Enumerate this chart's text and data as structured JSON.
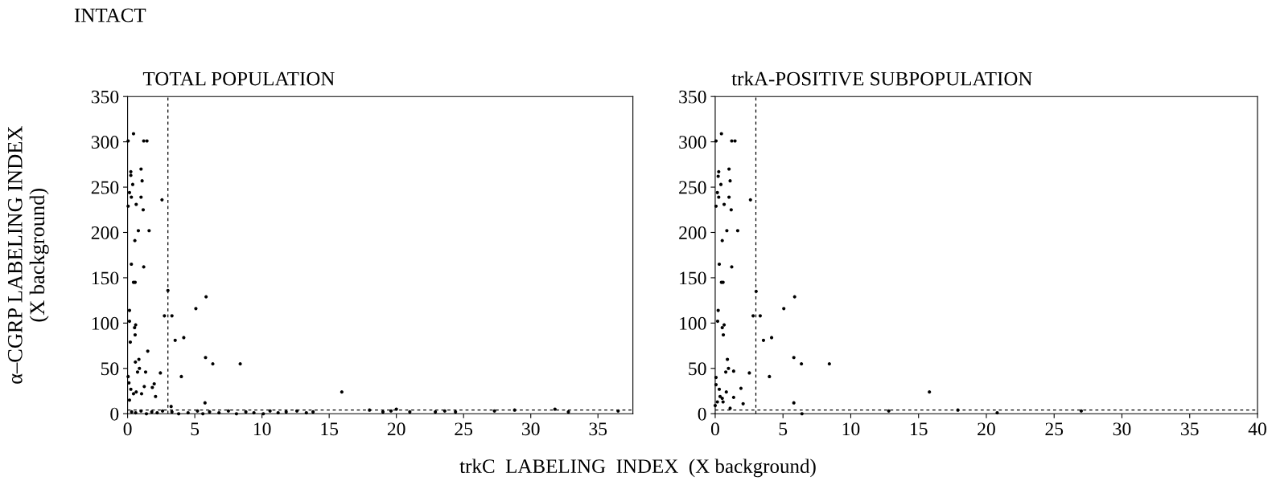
{
  "chart_data": [
    {
      "type": "scatter",
      "title": "TOTAL POPULATION",
      "xlabel": "trkC  LABELING  INDEX  (X background)",
      "ylabel": "α–CGRP LABELING INDEX\n(X background)",
      "annotations": [
        "INTACT"
      ],
      "xlim": [
        0,
        37.6
      ],
      "xticks": [
        0,
        5,
        10,
        15,
        20,
        25,
        30,
        35
      ],
      "ylim": [
        0,
        350
      ],
      "yticks": [
        0,
        50,
        100,
        150,
        200,
        250,
        300,
        350
      ],
      "grid": false,
      "marker": "circle",
      "ref_lines": [
        {
          "axis": "x",
          "value": 3,
          "line_style": "dashed",
          "color": "#000000"
        },
        {
          "axis": "y",
          "value": 4,
          "line_style": "dashed",
          "color": "#000000"
        }
      ],
      "series": [
        {
          "color": "#000000",
          "x": [
            0.44,
            0.04,
            1.2,
            1.44,
            0.24,
            0.24,
            1.0,
            1.08,
            0.38,
            0.14,
            0.28,
            1.0,
            0.04,
            0.64,
            1.16,
            2.56,
            0.8,
            1.6,
            0.54,
            1.2,
            0.28,
            0.44,
            0.56,
            0.14,
            0.14,
            0.6,
            0.52,
            0.56,
            0.2,
            1.5,
            0.58,
            0.84,
            0.88,
            0.74,
            1.34,
            2.44,
            0.04,
            0.1,
            1.24,
            1.84,
            1.98,
            0.24,
            0.44,
            0.64,
            2.08,
            1.04,
            0.14,
            3.0,
            2.74,
            3.3,
            3.54,
            4.18,
            5.08,
            5.84,
            5.8,
            6.34,
            4.0,
            8.38,
            5.76,
            3.24,
            15.94,
            0.3,
            0.6,
            1.0,
            1.4,
            1.8,
            2.2,
            2.6,
            3.3,
            3.8,
            4.5,
            5.2,
            5.6,
            6.1,
            6.8,
            7.5,
            8.1,
            8.8,
            9.4,
            10.1,
            10.6,
            11.2,
            11.8,
            12.6,
            13.3,
            13.8,
            18.0,
            19.0,
            19.6,
            20.0,
            21.0,
            22.9,
            23.6,
            24.4,
            27.3,
            28.8,
            31.8,
            32.8,
            36.5
          ],
          "values": [
            309,
            301,
            301,
            301,
            267,
            263,
            270,
            257,
            253,
            244,
            239,
            239,
            229,
            231,
            225,
            236,
            202,
            202,
            191,
            162,
            165,
            145,
            145,
            114,
            102,
            98,
            95,
            87,
            79,
            69,
            57,
            60,
            50,
            46,
            46,
            45,
            41,
            34,
            30,
            29,
            33,
            27,
            22,
            24,
            19,
            22,
            15,
            136,
            108,
            108,
            81,
            84,
            116,
            129,
            62,
            55,
            41,
            55,
            12,
            8,
            24,
            2,
            1,
            3,
            0,
            2,
            1,
            3,
            2,
            0,
            1,
            3,
            0,
            2,
            1,
            3,
            0,
            2,
            1,
            0,
            3,
            1,
            2,
            3,
            1,
            2,
            4,
            2,
            3,
            5,
            2,
            2,
            3,
            2,
            3,
            4,
            5,
            2,
            3
          ]
        }
      ]
    },
    {
      "type": "scatter",
      "title": "trkA-POSITIVE SUBPOPULATION",
      "xlim": [
        0,
        40
      ],
      "xticks": [
        0,
        5,
        10,
        15,
        20,
        25,
        30,
        35,
        40
      ],
      "ylim": [
        0,
        350
      ],
      "yticks": [
        0,
        50,
        100,
        150,
        200,
        250,
        300,
        350
      ],
      "grid": false,
      "marker": "circle",
      "ref_lines": [
        {
          "axis": "x",
          "value": 3,
          "line_style": "dashed",
          "color": "#000000"
        },
        {
          "axis": "y",
          "value": 4,
          "line_style": "dashed",
          "color": "#000000"
        }
      ],
      "series": [
        {
          "color": "#000000",
          "x": [
            0.46,
            0.06,
            1.22,
            1.46,
            0.26,
            0.22,
            1.02,
            1.1,
            0.42,
            0.16,
            0.26,
            1.02,
            0.06,
            0.66,
            1.18,
            2.6,
            0.86,
            1.66,
            0.52,
            1.22,
            0.3,
            0.46,
            0.58,
            0.22,
            0.18,
            0.66,
            0.52,
            0.6,
            0.9,
            0.98,
            0.78,
            1.36,
            2.52,
            0.06,
            0.06,
            0.3,
            0.36,
            0.52,
            0.58,
            0.82,
            1.9,
            1.36,
            2.06,
            0.16,
            0.0,
            1.1,
            3.02,
            2.8,
            3.32,
            3.56,
            4.16,
            5.06,
            5.86,
            5.8,
            6.36,
            4.0,
            8.42,
            5.8,
            6.4,
            12.8,
            15.8,
            17.9,
            20.8,
            27.0
          ],
          "values": [
            309,
            301,
            301,
            301,
            267,
            262,
            270,
            257,
            253,
            244,
            239,
            239,
            229,
            231,
            225,
            236,
            202,
            202,
            191,
            162,
            165,
            145,
            145,
            114,
            102,
            98,
            95,
            87,
            60,
            50,
            46,
            47,
            45,
            40,
            32,
            27,
            19,
            17,
            13,
            24,
            28,
            18,
            11,
            13,
            9,
            6,
            135,
            108,
            108,
            81,
            84,
            116,
            129,
            62,
            55,
            41,
            55,
            12,
            0,
            3,
            24,
            4,
            1,
            3
          ]
        }
      ]
    }
  ]
}
